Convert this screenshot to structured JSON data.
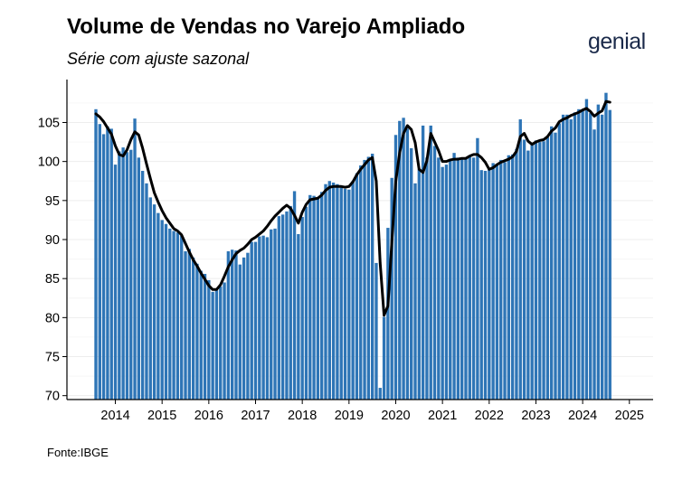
{
  "title": "Volume de Vendas no Varejo Ampliado",
  "subtitle": "Série com ajuste sazonal",
  "logo": "genial",
  "source": "Fonte:IBGE",
  "colors": {
    "bar": "#2e75b6",
    "line": "#000000",
    "grid": "#ededed"
  },
  "chart_data": {
    "type": "bar",
    "overlay": "line",
    "x_start": "2013-08",
    "frequency": "monthly",
    "x_ticks": [
      "2014",
      "2015",
      "2016",
      "2017",
      "2018",
      "2019",
      "2020",
      "2021",
      "2022",
      "2023",
      "2024",
      "2025"
    ],
    "y_ticks": [
      70,
      75,
      80,
      85,
      90,
      95,
      100,
      105
    ],
    "ylim": [
      69.5,
      110.5
    ],
    "grid": true,
    "values": [
      106.7,
      104.8,
      103.5,
      104.5,
      104.2,
      99.6,
      101.3,
      101.8,
      101.2,
      101.5,
      105.5,
      100.5,
      98.8,
      97.2,
      95.4,
      94.5,
      93.4,
      92.5,
      92.0,
      91.4,
      91.1,
      90.9,
      90.5,
      88.5,
      88.8,
      87.7,
      86.9,
      86.0,
      85.6,
      84.8,
      83.3,
      83.5,
      84.0,
      84.5,
      88.5,
      88.7,
      88.6,
      86.8,
      87.7,
      88.3,
      89.7,
      89.7,
      90.4,
      90.5,
      90.3,
      91.3,
      91.4,
      93.0,
      93.2,
      93.6,
      94.3,
      96.2,
      90.7,
      92.9,
      94.2,
      95.7,
      95.6,
      95.4,
      96.1,
      97.1,
      97.5,
      97.3,
      97.1,
      96.7,
      96.5,
      96.4,
      97.5,
      98.5,
      99.5,
      100.2,
      100.6,
      101.0,
      87.0,
      71.0,
      80.1,
      91.5,
      97.9,
      103.4,
      105.2,
      105.6,
      104.2,
      101.7,
      97.2,
      99.0,
      104.6,
      100.5,
      104.6,
      102.0,
      100.5,
      99.3,
      99.6,
      100.2,
      101.1,
      100.5,
      100.5,
      100.5,
      100.8,
      100.5,
      103.0,
      98.9,
      98.8,
      99.1,
      99.8,
      99.7,
      100.2,
      99.9,
      100.8,
      100.9,
      101.6,
      105.4,
      102.8,
      101.4,
      102.2,
      102.7,
      102.5,
      102.6,
      103.1,
      104.5,
      103.7,
      104.9,
      106.0,
      106.0,
      105.4,
      106.3,
      106.7,
      106.5,
      108.0,
      106.2,
      104.1,
      107.3,
      106.0,
      108.8,
      106.6
    ],
    "trend": [
      106.1,
      105.7,
      105.1,
      104.3,
      103.5,
      102.0,
      100.9,
      100.7,
      101.5,
      102.8,
      103.8,
      103.4,
      101.7,
      99.7,
      97.8,
      96.0,
      94.8,
      93.7,
      92.8,
      92.1,
      91.4,
      91.1,
      90.6,
      89.5,
      88.4,
      87.4,
      86.6,
      85.7,
      84.9,
      84.1,
      83.6,
      83.6,
      84.2,
      85.3,
      86.5,
      87.4,
      88.2,
      88.6,
      88.9,
      89.4,
      90.0,
      90.3,
      90.7,
      91.1,
      91.7,
      92.4,
      93.0,
      93.5,
      94.0,
      94.4,
      94.0,
      93.1,
      92.1,
      93.5,
      94.5,
      95.1,
      95.2,
      95.3,
      95.7,
      96.3,
      96.7,
      96.8,
      96.8,
      96.8,
      96.7,
      96.8,
      97.4,
      98.3,
      99.0,
      99.6,
      100.2,
      100.5,
      97.5,
      87.0,
      80.3,
      81.5,
      89.7,
      97.4,
      101.1,
      103.6,
      104.6,
      104.1,
      102.4,
      99.0,
      98.6,
      100.1,
      103.6,
      102.5,
      101.4,
      100.0,
      100.0,
      100.2,
      100.3,
      100.3,
      100.4,
      100.4,
      100.7,
      100.9,
      100.9,
      100.5,
      99.9,
      99.0,
      99.2,
      99.6,
      99.9,
      100.1,
      100.3,
      100.6,
      101.3,
      103.2,
      103.6,
      102.6,
      102.2,
      102.5,
      102.7,
      102.8,
      103.2,
      103.9,
      104.3,
      105.1,
      105.4,
      105.6,
      105.9,
      106.1,
      106.3,
      106.6,
      106.8,
      106.4,
      105.8,
      106.2,
      106.5,
      107.7,
      107.6
    ]
  }
}
